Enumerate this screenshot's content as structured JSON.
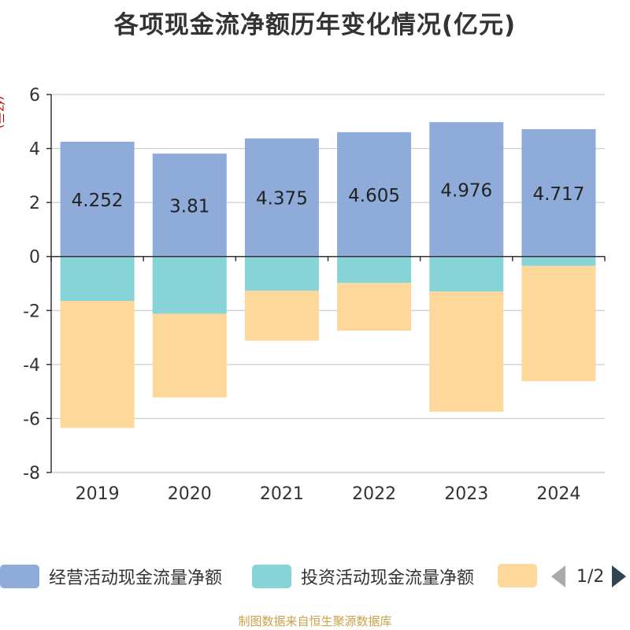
{
  "title": "各项现金流净额历年变化情况(亿元)",
  "unit_label": "(亿元)",
  "footer": "制图数据来自恒生聚源数据库",
  "legend": {
    "items": [
      {
        "label": "经营活动现金流量净额",
        "color": "#8eabd9"
      },
      {
        "label": "投资活动现金流量净额",
        "color": "#86d4d8"
      },
      {
        "label": "",
        "color": "#fdd89a"
      }
    ],
    "page": "1/2"
  },
  "chart_data": {
    "type": "bar",
    "stacked": true,
    "title": "各项现金流净额历年变化情况(亿元)",
    "ylabel": "(亿元)",
    "ylim": [
      -8,
      6
    ],
    "yticks": [
      6,
      4,
      2,
      0,
      -2,
      -4,
      -6,
      -8
    ],
    "categories": [
      "2019",
      "2020",
      "2021",
      "2022",
      "2023",
      "2024"
    ],
    "series": [
      {
        "name": "经营活动现金流量净额",
        "color": "#8eabd9",
        "values": [
          4.252,
          3.81,
          4.375,
          4.605,
          4.976,
          4.717
        ],
        "labels": [
          "4.252",
          "3.81",
          "4.375",
          "4.605",
          "4.976",
          "4.717"
        ]
      },
      {
        "name": "投资活动现金流量净额",
        "color": "#86d4d8",
        "values": [
          -1.65,
          -2.12,
          -1.27,
          -0.98,
          -1.3,
          -0.35
        ]
      },
      {
        "name": "",
        "color": "#fdd89a",
        "values": [
          -4.7,
          -3.1,
          -1.85,
          -1.77,
          -4.45,
          -4.27
        ]
      }
    ]
  }
}
